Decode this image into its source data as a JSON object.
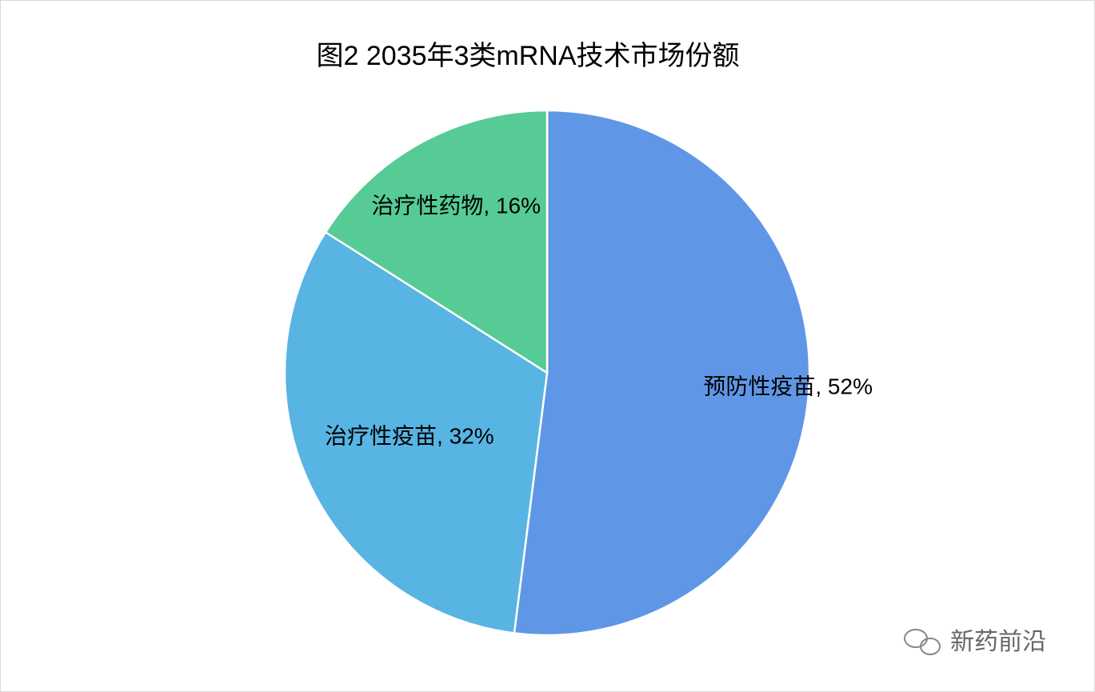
{
  "chart_data": {
    "type": "pie",
    "title": "图2  2035年3类mRNA技术市场份额",
    "categories": [
      "预防性疫苗",
      "治疗性疫苗",
      "治疗性药物"
    ],
    "values": [
      52,
      32,
      16
    ],
    "value_labels": [
      "预防性疫苗, 52%",
      "治疗性疫苗, 32%",
      "治疗性药物, 16%"
    ],
    "colors": [
      "#5f97e6",
      "#58b4e3",
      "#56cb95"
    ]
  },
  "watermark": "新药前沿"
}
